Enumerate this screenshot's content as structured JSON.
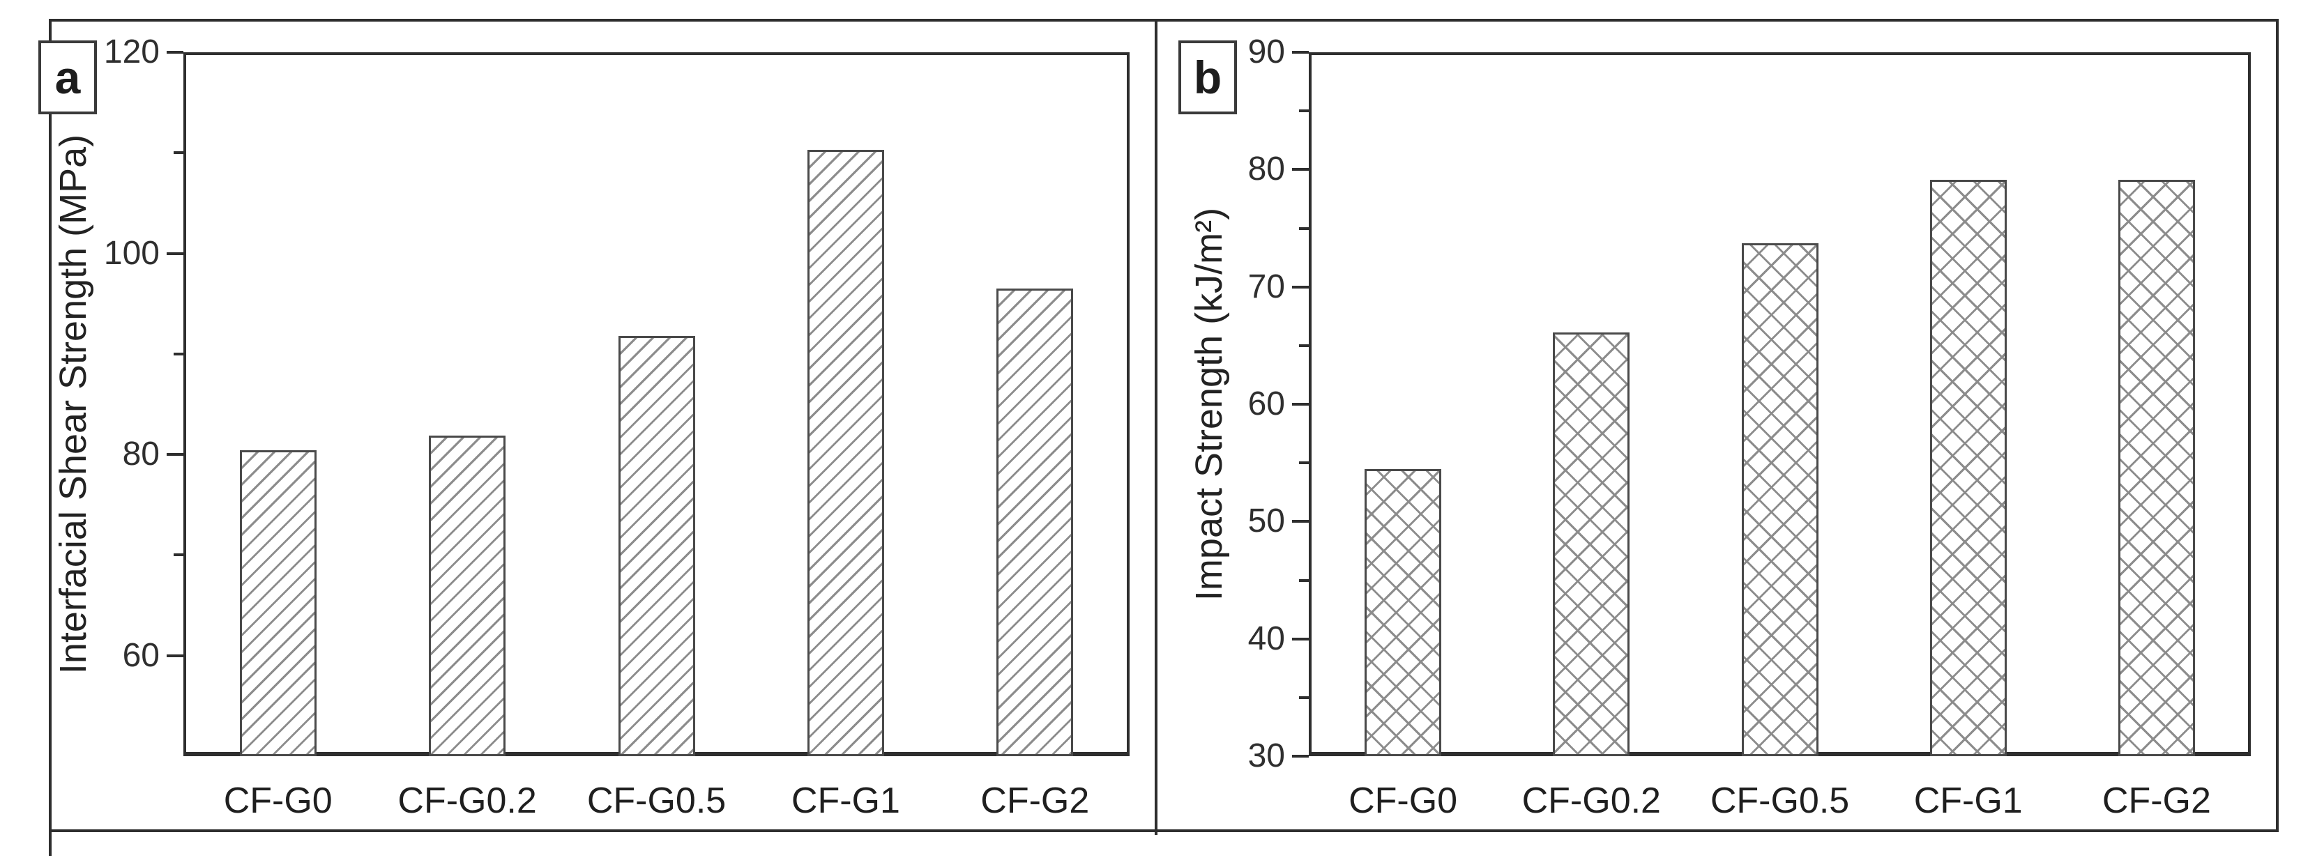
{
  "figure": {
    "background": "#ffffff",
    "frame_color": "#2e2e2e",
    "text_color": "#222222",
    "hatch_color": "#8c8c8c",
    "bar_fill": "#ffffff"
  },
  "chart_data": [
    {
      "type": "bar",
      "panel_label": "a",
      "title": "",
      "xlabel": "",
      "ylabel": "Interfacial Shear Strength (MPa)",
      "categories": [
        "CF-G0",
        "CF-G0.2",
        "CF-G0.5",
        "CF-G1",
        "CF-G2"
      ],
      "values": [
        80.4,
        81.9,
        91.8,
        110.3,
        96.5
      ],
      "ylim": [
        50,
        120
      ],
      "yticks_major": [
        120,
        100,
        80,
        60
      ],
      "yticks_minor": [
        110,
        90,
        70
      ],
      "grid": false,
      "legend": "none",
      "hatch": "diagonal"
    },
    {
      "type": "bar",
      "panel_label": "b",
      "title": "",
      "xlabel": "",
      "ylabel": "Impact Strength (kJ/m²)",
      "categories": [
        "CF-G0",
        "CF-G0.2",
        "CF-G0.5",
        "CF-G1",
        "CF-G2"
      ],
      "values": [
        54.5,
        66.1,
        73.7,
        79.1,
        79.1
      ],
      "ylim": [
        30,
        90
      ],
      "yticks_major": [
        90,
        80,
        70,
        60,
        50,
        40,
        30
      ],
      "yticks_minor": [
        85,
        75,
        65,
        55,
        45,
        35
      ],
      "grid": false,
      "legend": "none",
      "hatch": "cross"
    }
  ]
}
